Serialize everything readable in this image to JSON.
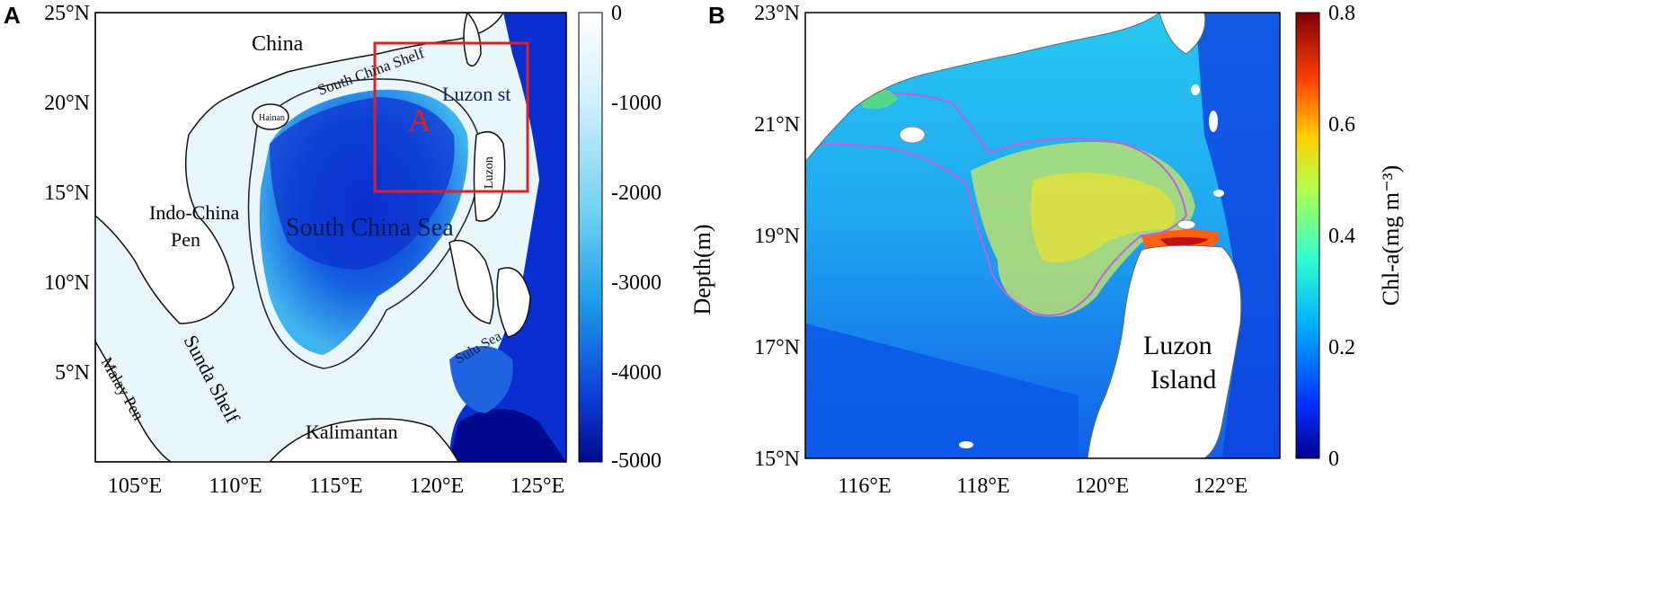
{
  "panel_a": {
    "letter": "A",
    "lat_ticks": [
      "25°N",
      "20°N",
      "15°N",
      "10°N",
      "5°N"
    ],
    "lon_ticks": [
      "105°E",
      "110°E",
      "115°E",
      "120°E",
      "125°E"
    ],
    "labels": {
      "china": "China",
      "south_china_shelf": "South China Shelf",
      "luzon_strait": "Luzon st",
      "hainan": "Hainan",
      "indo_china_1": "Indo-China",
      "indo_china_2": "Pen",
      "south_china_sea": "South China Sea",
      "luzon": "Luzon",
      "sulu_sea": "Sulu Sea",
      "malay_pen": "Malay Pen",
      "sunda_shelf": "Sunda Shelf",
      "kalimantan": "Kalimantan",
      "box_label": "A"
    },
    "colorbar": {
      "ticks": [
        "0",
        "-1000",
        "-2000",
        "-3000",
        "-4000",
        "-5000"
      ],
      "label": "Depth(m)",
      "colors": [
        "#ffffff",
        "#cfefff",
        "#6fd0f0",
        "#1a9be8",
        "#0d3fd8",
        "#000a8c"
      ]
    }
  },
  "panel_b": {
    "letter": "B",
    "lat_ticks": [
      "23°N",
      "21°N",
      "19°N",
      "17°N",
      "15°N"
    ],
    "lon_ticks": [
      "116°E",
      "118°E",
      "120°E",
      "122°E"
    ],
    "labels": {
      "luzon_1": "Luzon",
      "luzon_2": "Island"
    },
    "colorbar": {
      "ticks": [
        "0.8",
        "0.6",
        "0.4",
        "0.2",
        "0"
      ],
      "label": "Chl-a(mg m⁻³)",
      "colors": [
        "#00008f",
        "#0040ff",
        "#00c0ff",
        "#40ffbf",
        "#c0ff40",
        "#ffc000",
        "#ff4000",
        "#800000"
      ]
    }
  }
}
